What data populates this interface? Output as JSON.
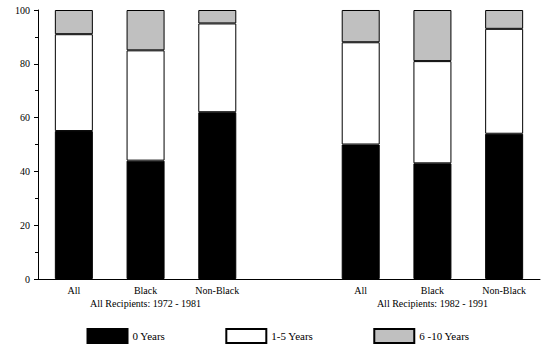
{
  "chart_data": {
    "type": "bar",
    "stacked": true,
    "categories": [
      "All",
      "Black",
      "Non-Black",
      null,
      "All",
      "Black",
      "Non-Black"
    ],
    "annotations": [
      "All Recipients: 1972 - 1981",
      "All Recipients: 1982 - 1991"
    ],
    "series": [
      {
        "name": "0 Years",
        "color": "#000000",
        "values": [
          55,
          44,
          62,
          null,
          50,
          43,
          54
        ]
      },
      {
        "name": "1-5 Years",
        "color": "#ffffff",
        "values": [
          36,
          41,
          33,
          null,
          38,
          38,
          39
        ]
      },
      {
        "name": "6 -10 Years",
        "color": "#c0c0c0",
        "values": [
          9,
          15,
          5,
          null,
          12,
          19,
          7
        ]
      }
    ],
    "ylim": [
      0,
      100
    ],
    "yticks": [
      0,
      20,
      40,
      60,
      80,
      100
    ],
    "grid": false,
    "legend": "bottom"
  }
}
